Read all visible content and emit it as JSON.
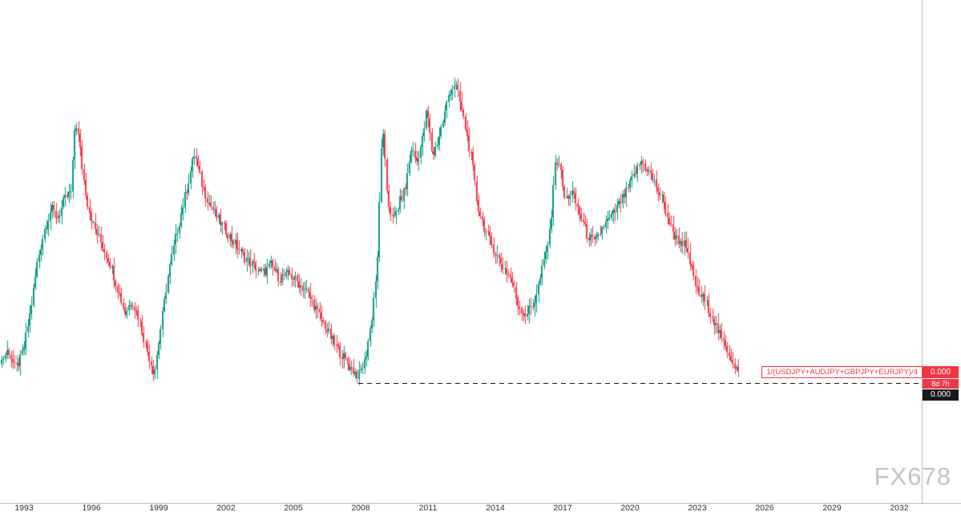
{
  "watermark": "FX678",
  "price_labels": {
    "series_name": "1/(USDJPY+AUDJPY+GBPJPY+EURJPY)/4",
    "last_price": "0.000",
    "countdown": "8d 7h",
    "secondary_price": "0.000"
  },
  "chart_data": {
    "type": "candlestick",
    "title": "1/(USDJPY+AUDJPY+GBPJPY+EURJPY)/4",
    "timeframe_hint": "monthly candles",
    "x_start_year": 1992.0,
    "x_end_year": 2024.9,
    "x_ticks": [
      "1993",
      "1996",
      "1999",
      "2002",
      "2005",
      "2008",
      "2011",
      "2014",
      "2017",
      "2020",
      "2023",
      "2026",
      "2029",
      "2032"
    ],
    "ylim": [
      0,
      116
    ],
    "y_axis_numeric_labels": "none visible (price displays as 0.000)",
    "grid": "off",
    "up_color": "#089981",
    "down_color": "#f23645",
    "last_price_display": "0.000",
    "bar_countdown": "8d 7h",
    "secondary_price_display": "0.000",
    "support_line": {
      "style": "dashed",
      "color": "#1c1c1c",
      "value": 27.8,
      "start_year": 2007.9,
      "extends_to": "right price axis"
    },
    "series_keypoints_year_value": [
      [
        1992.0,
        33
      ],
      [
        1992.3,
        35.5
      ],
      [
        1992.6,
        31
      ],
      [
        1992.85,
        33.5
      ],
      [
        1993.0,
        36
      ],
      [
        1993.3,
        45
      ],
      [
        1993.6,
        56
      ],
      [
        1993.9,
        63
      ],
      [
        1994.2,
        68
      ],
      [
        1994.5,
        66
      ],
      [
        1994.8,
        70
      ],
      [
        1995.1,
        72
      ],
      [
        1995.28,
        89
      ],
      [
        1995.45,
        84
      ],
      [
        1995.62,
        76
      ],
      [
        1995.85,
        69
      ],
      [
        1996.1,
        64
      ],
      [
        1996.45,
        60
      ],
      [
        1996.8,
        56
      ],
      [
        1997.15,
        50
      ],
      [
        1997.5,
        44
      ],
      [
        1997.8,
        47
      ],
      [
        1998.1,
        43
      ],
      [
        1998.45,
        36
      ],
      [
        1998.8,
        30
      ],
      [
        1999.1,
        41
      ],
      [
        1999.4,
        52
      ],
      [
        1999.7,
        60
      ],
      [
        2000.0,
        67
      ],
      [
        2000.3,
        74
      ],
      [
        2000.6,
        81
      ],
      [
        2000.9,
        74
      ],
      [
        2001.2,
        70
      ],
      [
        2001.6,
        66
      ],
      [
        2002.0,
        63
      ],
      [
        2002.4,
        60
      ],
      [
        2002.8,
        57
      ],
      [
        2003.2,
        55
      ],
      [
        2003.6,
        53
      ],
      [
        2004.0,
        55
      ],
      [
        2004.4,
        52
      ],
      [
        2004.8,
        53
      ],
      [
        2005.2,
        51
      ],
      [
        2005.6,
        49
      ],
      [
        2006.0,
        45
      ],
      [
        2006.4,
        41
      ],
      [
        2006.8,
        37
      ],
      [
        2007.2,
        34
      ],
      [
        2007.6,
        31
      ],
      [
        2007.9,
        29.5
      ],
      [
        2008.2,
        33
      ],
      [
        2008.5,
        43
      ],
      [
        2008.75,
        56
      ],
      [
        2008.95,
        88
      ],
      [
        2009.2,
        70
      ],
      [
        2009.45,
        65
      ],
      [
        2009.7,
        69
      ],
      [
        2010.0,
        73
      ],
      [
        2010.25,
        82
      ],
      [
        2010.5,
        79
      ],
      [
        2010.75,
        84
      ],
      [
        2010.95,
        91
      ],
      [
        2011.2,
        80
      ],
      [
        2011.45,
        84
      ],
      [
        2011.7,
        89
      ],
      [
        2011.95,
        95
      ],
      [
        2012.2,
        97
      ],
      [
        2012.45,
        92
      ],
      [
        2012.7,
        86
      ],
      [
        2012.95,
        79
      ],
      [
        2013.2,
        69
      ],
      [
        2013.55,
        63
      ],
      [
        2013.9,
        59
      ],
      [
        2014.3,
        55
      ],
      [
        2014.7,
        52
      ],
      [
        2015.0,
        46
      ],
      [
        2015.35,
        43.5
      ],
      [
        2015.7,
        46
      ],
      [
        2016.05,
        53
      ],
      [
        2016.45,
        63
      ],
      [
        2016.62,
        77
      ],
      [
        2016.8,
        80
      ],
      [
        2017.1,
        70
      ],
      [
        2017.4,
        72
      ],
      [
        2017.75,
        67
      ],
      [
        2018.1,
        62
      ],
      [
        2018.45,
        60
      ],
      [
        2018.8,
        64
      ],
      [
        2019.15,
        66
      ],
      [
        2019.5,
        69
      ],
      [
        2019.85,
        72
      ],
      [
        2020.2,
        76
      ],
      [
        2020.5,
        79
      ],
      [
        2020.8,
        77
      ],
      [
        2021.1,
        74
      ],
      [
        2021.45,
        70
      ],
      [
        2021.8,
        64
      ],
      [
        2022.1,
        61
      ],
      [
        2022.4,
        60
      ],
      [
        2022.7,
        55
      ],
      [
        2023.0,
        49
      ],
      [
        2023.3,
        47
      ],
      [
        2023.6,
        44
      ],
      [
        2023.9,
        40
      ],
      [
        2024.15,
        37
      ],
      [
        2024.4,
        35
      ],
      [
        2024.65,
        32
      ],
      [
        2024.9,
        30
      ]
    ]
  }
}
